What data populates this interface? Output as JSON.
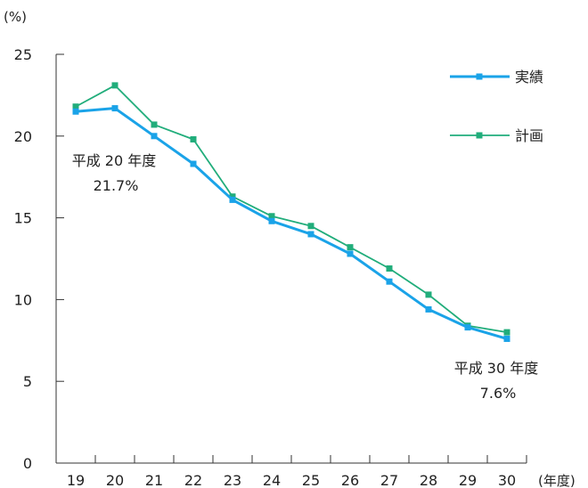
{
  "chart_data": {
    "type": "line",
    "y_unit_label": "(%)",
    "x_unit_label": "(年度)",
    "categories": [
      "19",
      "20",
      "21",
      "22",
      "23",
      "24",
      "25",
      "26",
      "27",
      "28",
      "29",
      "30"
    ],
    "ylim": [
      0,
      25
    ],
    "yticks": [
      "0",
      "5",
      "10",
      "15",
      "20",
      "25"
    ],
    "grid": false,
    "legend_position": "top-right",
    "series": [
      {
        "name": "実績",
        "color": "#1aa3e8",
        "values": [
          21.5,
          21.7,
          20.0,
          18.3,
          16.1,
          14.8,
          14.0,
          12.8,
          11.1,
          9.4,
          8.3,
          7.6
        ]
      },
      {
        "name": "計画",
        "color": "#21ad7b",
        "values": [
          21.8,
          23.1,
          20.7,
          19.8,
          16.3,
          15.1,
          14.5,
          13.2,
          11.9,
          10.3,
          8.4,
          8.0
        ]
      }
    ],
    "annotations": [
      {
        "line1": "平成 20 年度",
        "line2": "21.7%"
      },
      {
        "line1": "平成 30 年度",
        "line2": "7.6%"
      }
    ]
  }
}
